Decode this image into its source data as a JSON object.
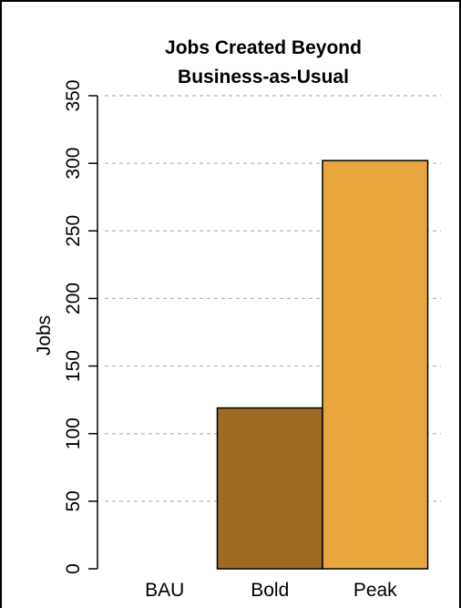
{
  "chart_data": {
    "type": "bar",
    "title": "Jobs Created Beyond Business-as-Usual",
    "title_lines": [
      "Jobs Created Beyond",
      "Business-as-Usual"
    ],
    "xlabel": "",
    "ylabel": "Jobs",
    "categories": [
      "BAU",
      "Bold",
      "Peak"
    ],
    "values": [
      0,
      119,
      302
    ],
    "colors": [
      "#ffffff",
      "#9e6b24",
      "#e9a53e"
    ],
    "ylim": [
      0,
      350
    ],
    "yticks": [
      0,
      50,
      100,
      150,
      200,
      250,
      300,
      350
    ],
    "ytick_labels": [
      "0",
      "50",
      "100",
      "150",
      "200",
      "250",
      "300",
      "350"
    ],
    "grid": true,
    "grid_style": "dashed horizontal",
    "legend": "none"
  }
}
